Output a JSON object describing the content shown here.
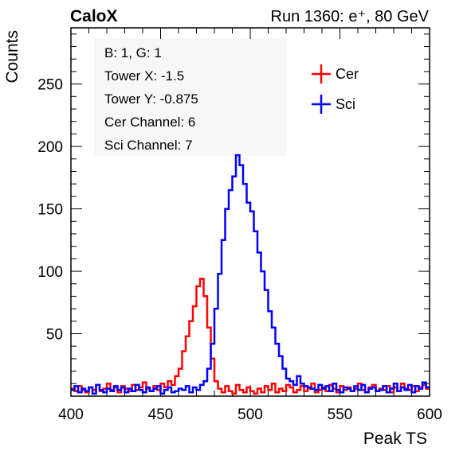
{
  "header": {
    "left": "CaloX",
    "right": "Run 1360: e⁺, 80 GeV"
  },
  "info_box": [
    "B: 1, G: 1",
    "Tower X: -1.5",
    "Tower Y: -0.875",
    "Cer Channel: 6",
    "Sci Channel: 7"
  ],
  "colors": {
    "Cer": "#ff0000",
    "Sci": "#0000ff",
    "frame": "#000000",
    "info_bg": "#f7f7f7"
  },
  "chart_data": {
    "type": "line",
    "style": "step-histogram",
    "xlabel": "Peak TS",
    "ylabel": "Counts",
    "xlim": [
      400,
      600
    ],
    "ylim": [
      0,
      295
    ],
    "x_ticks": [
      400,
      450,
      500,
      550,
      600
    ],
    "y_ticks": [
      50,
      100,
      150,
      200,
      250
    ],
    "grid": false,
    "legend_position": "top-right",
    "x": [
      400,
      402,
      404,
      406,
      408,
      410,
      412,
      414,
      416,
      418,
      420,
      422,
      424,
      426,
      428,
      430,
      432,
      434,
      436,
      438,
      440,
      442,
      444,
      446,
      448,
      450,
      452,
      454,
      456,
      458,
      460,
      462,
      464,
      466,
      468,
      470,
      472,
      474,
      476,
      478,
      480,
      482,
      484,
      486,
      488,
      490,
      492,
      494,
      496,
      498,
      500,
      502,
      504,
      506,
      508,
      510,
      512,
      514,
      516,
      518,
      520,
      522,
      524,
      526,
      528,
      530,
      532,
      534,
      536,
      538,
      540,
      542,
      544,
      546,
      548,
      550,
      552,
      554,
      556,
      558,
      560,
      562,
      564,
      566,
      568,
      570,
      572,
      574,
      576,
      578,
      580,
      582,
      584,
      586,
      588,
      590,
      592,
      594,
      596,
      598
    ],
    "series": [
      {
        "name": "Cer",
        "values": [
          6,
          4,
          8,
          5,
          3,
          7,
          5,
          9,
          4,
          6,
          10,
          5,
          7,
          3,
          8,
          6,
          4,
          9,
          5,
          7,
          11,
          6,
          4,
          8,
          5,
          10,
          7,
          12,
          9,
          16,
          22,
          36,
          48,
          60,
          72,
          88,
          94,
          80,
          55,
          30,
          12,
          6,
          3,
          8,
          4,
          2,
          9,
          5,
          3,
          7,
          4,
          2,
          6,
          3,
          8,
          5,
          10,
          3,
          6,
          4,
          9,
          7,
          3,
          5,
          8,
          4,
          6,
          10,
          3,
          5,
          7,
          4,
          9,
          6,
          3,
          8,
          5,
          7,
          4,
          6,
          10,
          5,
          3,
          7,
          9,
          4,
          6,
          5,
          8,
          3,
          7,
          4,
          10,
          6,
          5,
          8,
          4,
          7,
          9,
          6
        ]
      },
      {
        "name": "Sci",
        "values": [
          5,
          8,
          3,
          6,
          4,
          7,
          2,
          9,
          5,
          3,
          6,
          4,
          8,
          5,
          7,
          3,
          6,
          4,
          9,
          5,
          3,
          7,
          4,
          6,
          8,
          2,
          5,
          7,
          3,
          4,
          6,
          5,
          8,
          3,
          7,
          5,
          9,
          12,
          22,
          42,
          70,
          98,
          125,
          150,
          165,
          176,
          193,
          185,
          170,
          155,
          148,
          132,
          115,
          100,
          85,
          68,
          55,
          42,
          32,
          22,
          14,
          12,
          9,
          16,
          10,
          8,
          7,
          6,
          5,
          9,
          6,
          8,
          4,
          10,
          5,
          3,
          7,
          6,
          4,
          8,
          5,
          9,
          3,
          6,
          7,
          4,
          5,
          8,
          3,
          6,
          10,
          4,
          7,
          5,
          9,
          3,
          8,
          6,
          11,
          7
        ]
      }
    ]
  }
}
